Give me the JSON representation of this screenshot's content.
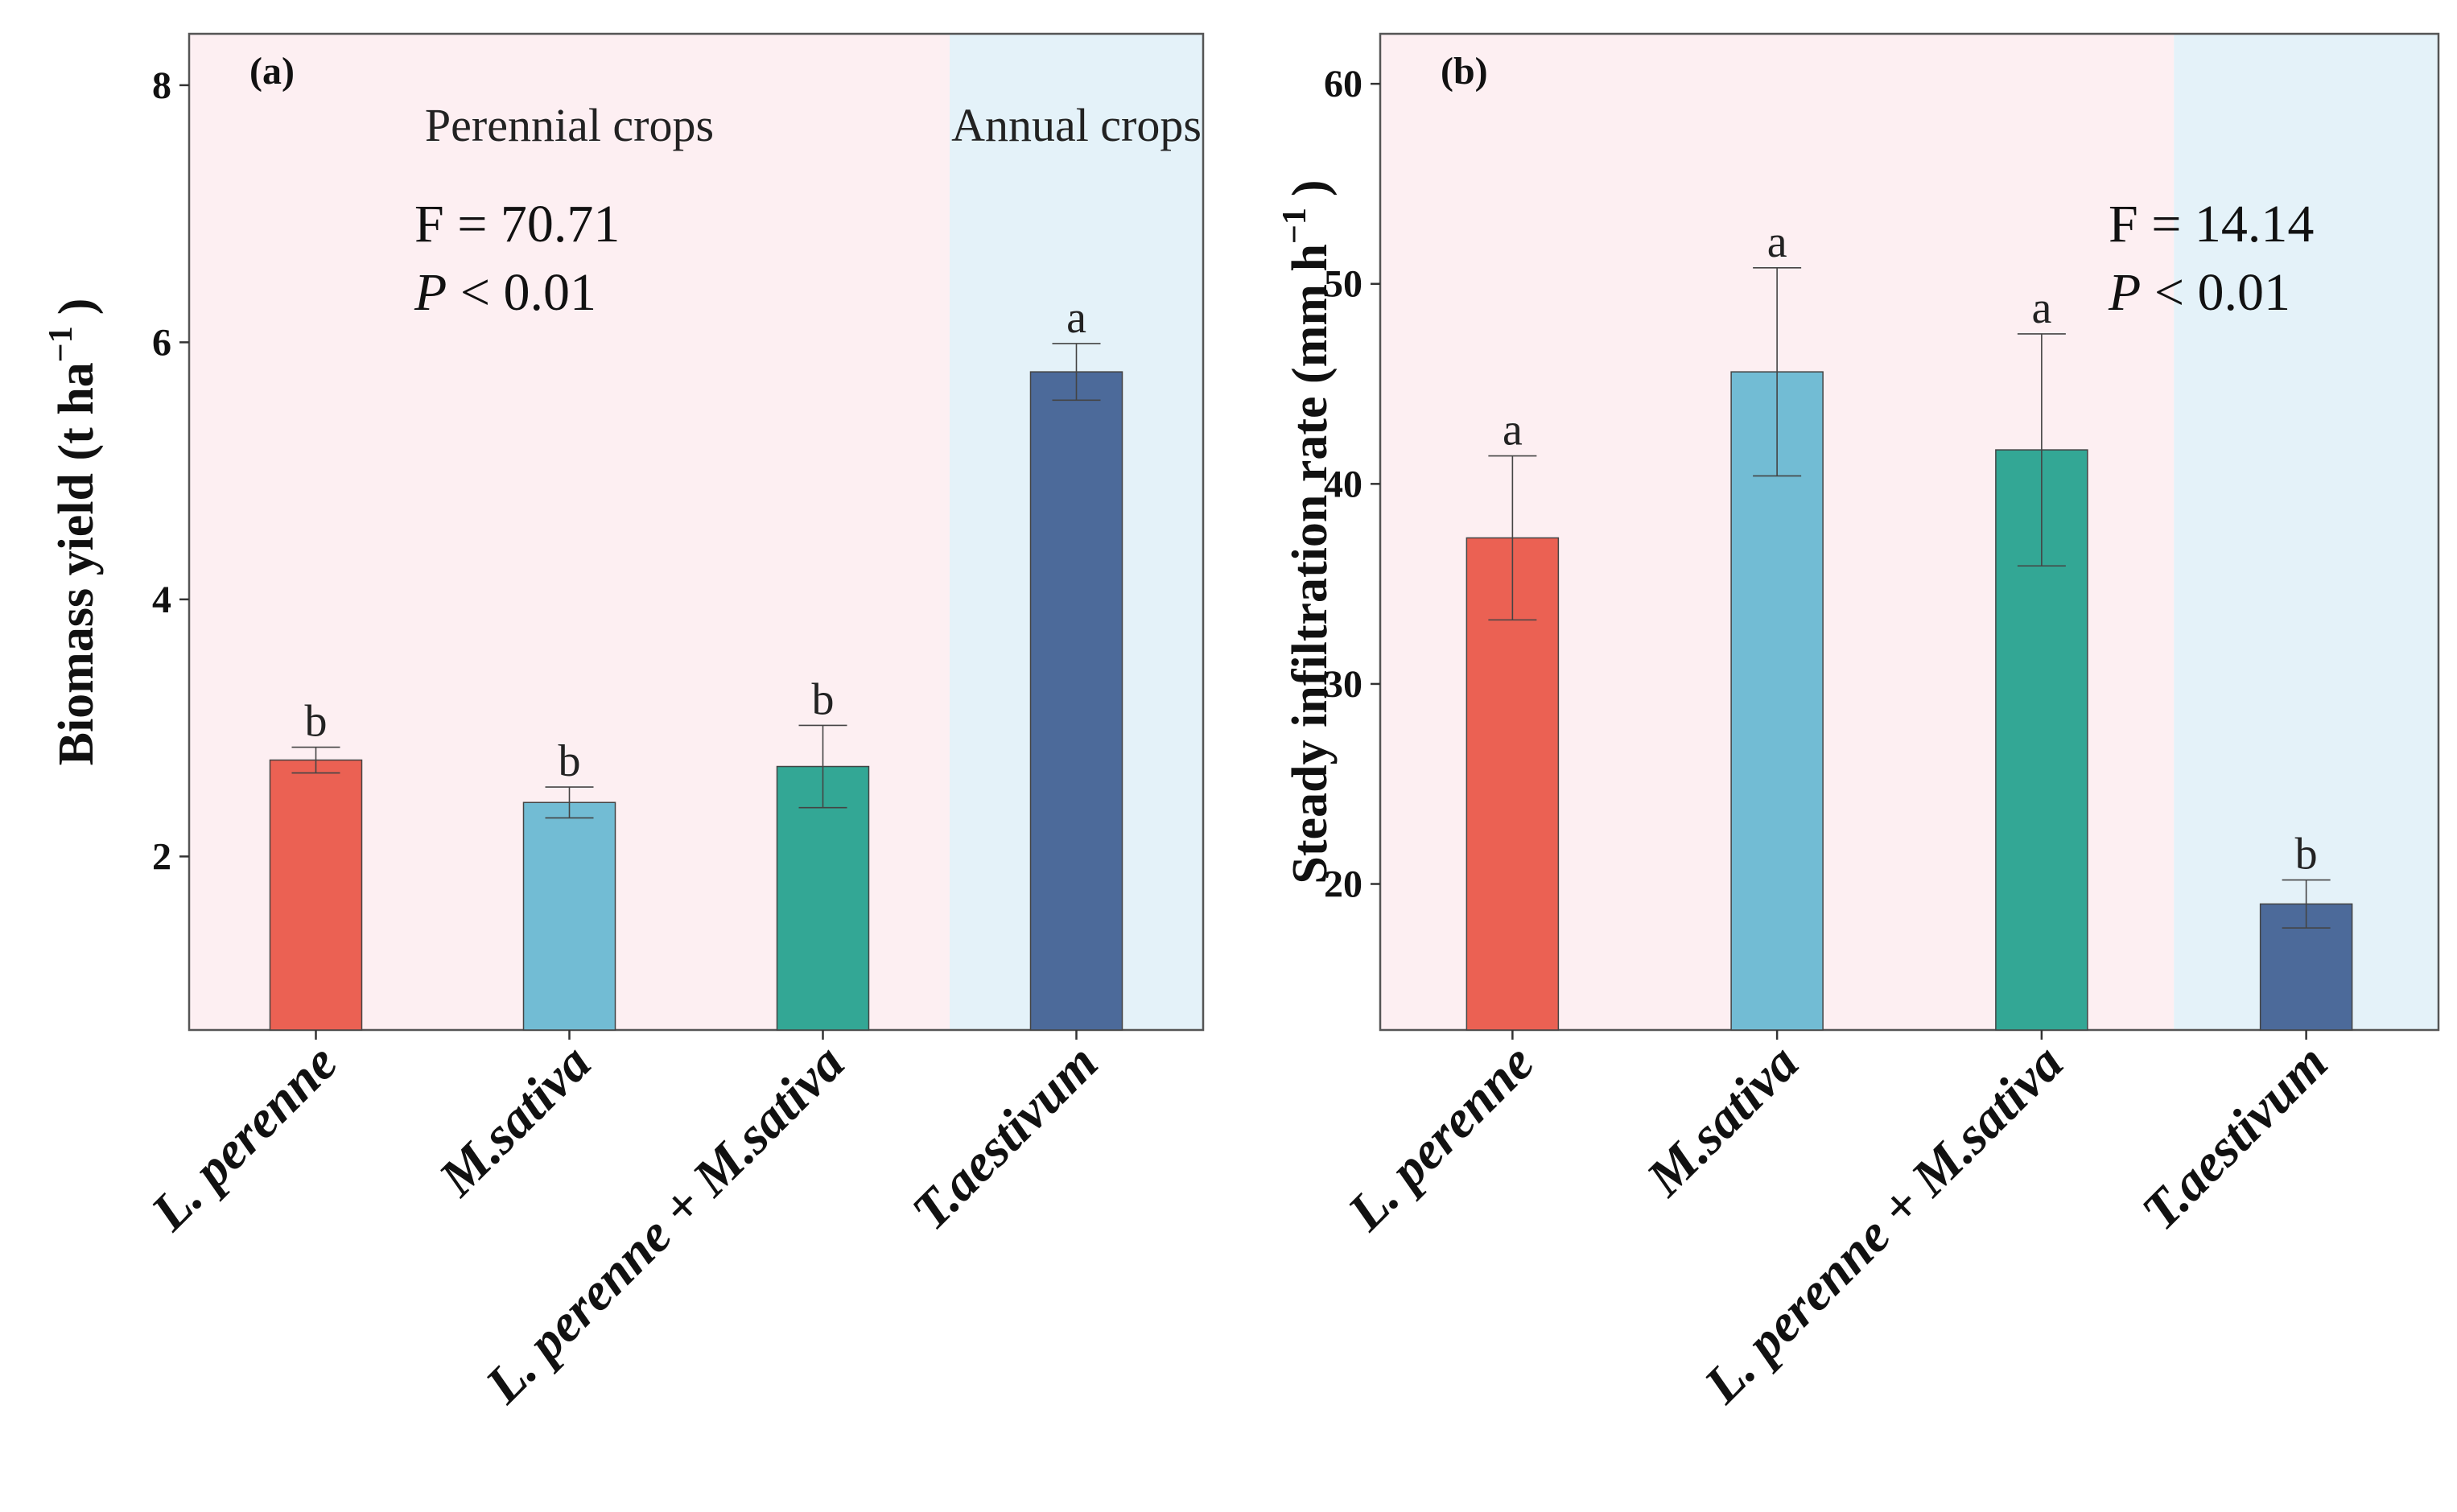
{
  "chart_data": [
    {
      "type": "bar",
      "panel_label": "(a)",
      "categories": [
        "L. perenne",
        "M.sativa",
        "L. perenne + M.sativa",
        "T.aestivum"
      ],
      "values": [
        2.75,
        2.42,
        2.7,
        5.77
      ],
      "error": [
        0.1,
        0.12,
        0.32,
        0.22
      ],
      "significance_letters": [
        "b",
        "b",
        "b",
        "a"
      ],
      "colors": [
        "#EB6153",
        "#72BCD4",
        "#33A795",
        "#4C6A9A"
      ],
      "ylabel": "Biomass yield (t  ha",
      "ylabel_sup": "−1",
      "ylabel_close": ")",
      "ylim": [
        0.65,
        8.4
      ],
      "yticks": [
        2,
        4,
        6,
        8
      ],
      "regions": [
        {
          "label": "Perennial crops",
          "categories": [
            0,
            2
          ],
          "color": "#FDEFF2"
        },
        {
          "label": "Annual crops",
          "categories": [
            3,
            3
          ],
          "color": "#E4F2F9"
        }
      ],
      "stat_f": "F = 70.71",
      "stat_p_italic": "P",
      "stat_p_rest": " < 0.01"
    },
    {
      "type": "bar",
      "panel_label": "(b)",
      "categories": [
        "L. perenne",
        "M.sativa",
        "L. perenne + M.sativa",
        "T.aestivum"
      ],
      "values": [
        37.3,
        45.6,
        41.7,
        19.0
      ],
      "error": [
        4.1,
        5.2,
        5.8,
        1.2
      ],
      "significance_letters": [
        "a",
        "a",
        "a",
        "b"
      ],
      "colors": [
        "#EB6153",
        "#72BCD4",
        "#33A795",
        "#4C6A9A"
      ],
      "ylabel": "Steady infiltration rate  (mm  h",
      "ylabel_sup": "−1",
      "ylabel_close": ")",
      "ylim": [
        12.7,
        62.5
      ],
      "yticks": [
        20,
        30,
        40,
        50,
        60
      ],
      "regions": [
        {
          "label": "",
          "categories": [
            0,
            2
          ],
          "color": "#FDEFF2"
        },
        {
          "label": "",
          "categories": [
            3,
            3
          ],
          "color": "#E4F2F9"
        }
      ],
      "stat_f": "F = 14.14",
      "stat_p_italic": "P",
      "stat_p_rest": " < 0.01"
    }
  ]
}
